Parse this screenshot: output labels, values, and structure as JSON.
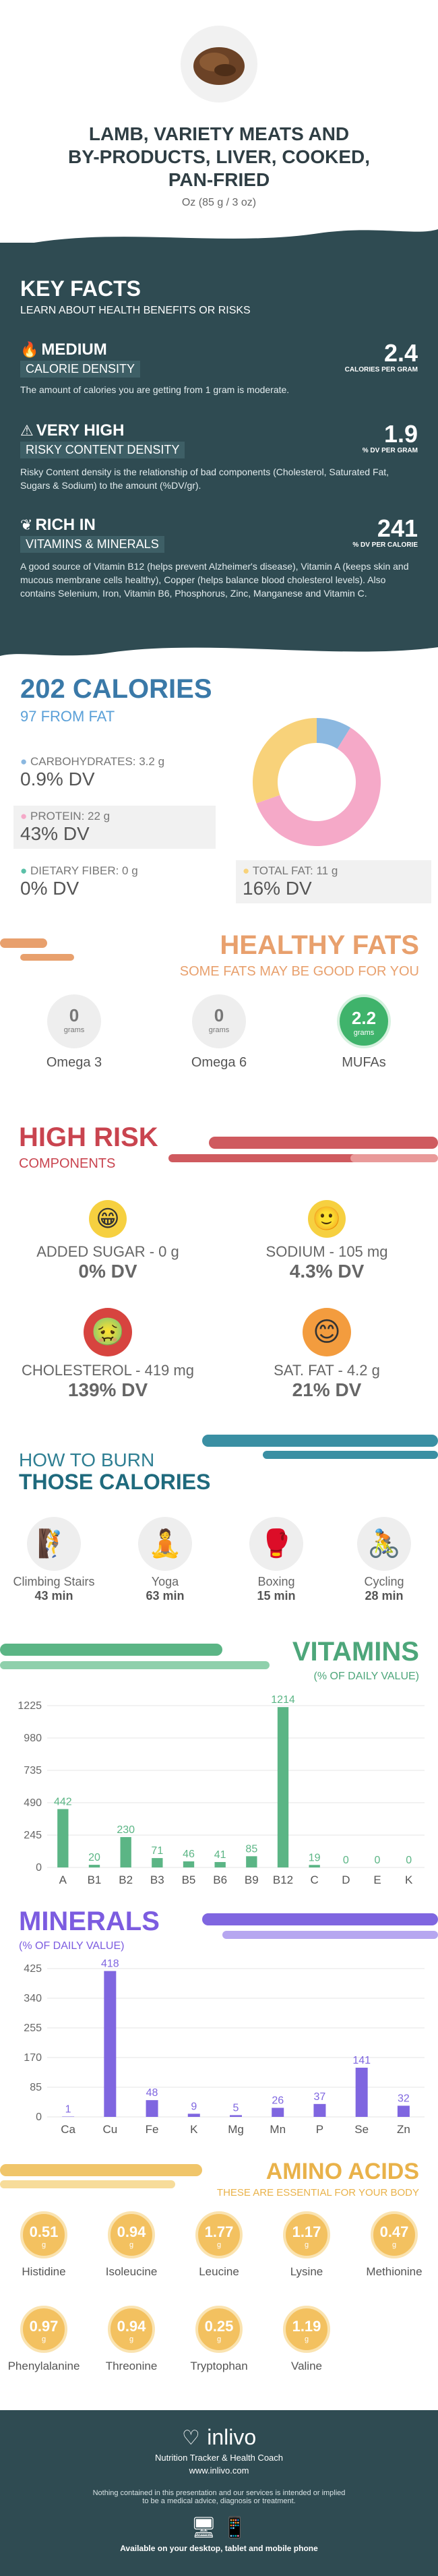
{
  "header": {
    "title_line1": "LAMB, VARIETY MEATS AND",
    "title_line2": "BY-PRODUCTS, LIVER, COOKED,",
    "title_line3": "PAN-FRIED",
    "serving": "Oz (85 g / 3 oz)"
  },
  "key_facts": {
    "title": "KEY FACTS",
    "subtitle": "LEARN ABOUT HEALTH BENEFITS OR RISKS",
    "items": [
      {
        "level": "MEDIUM",
        "label": "CALORIE DENSITY",
        "value": "2.4",
        "unit": "CALORIES PER GRAM",
        "desc": "The amount of calories you are getting from 1 gram is moderate."
      },
      {
        "level": "VERY HIGH",
        "label": "RISKY CONTENT DENSITY",
        "value": "1.9",
        "unit": "% DV PER GRAM",
        "desc": "Risky Content density is the relationship of bad components (Cholesterol, Saturated Fat, Sugars & Sodium) to the amount (%DV/gr)."
      },
      {
        "level": "RICH  IN",
        "label": "VITAMINS & MINERALS",
        "value": "241",
        "unit": "% DV PER CALORIE",
        "desc": "A good source of Vitamin B12 (helps prevent Alzheimer's disease), Vitamin A (keeps skin and mucous membrane cells healthy), Copper (helps balance blood cholesterol levels). Also contains Selenium, Iron, Vitamin B6, Phosphorus, Zinc, Manganese and Vitamin C."
      }
    ]
  },
  "calories": {
    "title": "202 CALORIES",
    "from_fat": "97 FROM FAT",
    "carbs_label": "CARBOHYDRATES: 3.2 g",
    "carbs_dv": "0.9% DV",
    "protein_label": "PROTEIN: 22 g",
    "protein_dv": "43% DV",
    "fiber_label": "DIETARY FIBER: 0 g",
    "fiber_dv": "0% DV",
    "fat_label": "TOTAL FAT: 11 g",
    "fat_dv": "16% DV",
    "colors": {
      "carbs": "#8bb8e0",
      "protein": "#f5a9c8",
      "fiber": "#5bc0a8",
      "fat": "#f8d27a"
    }
  },
  "healthy_fats": {
    "title": "HEALTHY FATS",
    "subtitle": "SOME FATS MAY BE GOOD FOR YOU",
    "items": [
      {
        "value": "0",
        "unit": "grams",
        "name": "Omega 3"
      },
      {
        "value": "0",
        "unit": "grams",
        "name": "Omega 6"
      },
      {
        "value": "2.2",
        "unit": "grams",
        "name": "MUFAs"
      }
    ]
  },
  "high_risk": {
    "title": "HIGH RISK",
    "subtitle": "COMPONENTS",
    "items": [
      {
        "label": "ADDED SUGAR - 0 g",
        "dv": "0% DV"
      },
      {
        "label": "SODIUM - 105 mg",
        "dv": "4.3% DV"
      },
      {
        "label": "CHOLESTEROL - 419 mg",
        "dv": "139% DV"
      },
      {
        "label": "SAT. FAT - 4.2 g",
        "dv": "21% DV"
      }
    ]
  },
  "burn": {
    "title1": "HOW TO BURN",
    "title2": "THOSE CALORIES",
    "items": [
      {
        "name": "Climbing Stairs",
        "time": "43 min"
      },
      {
        "name": "Yoga",
        "time": "63 min"
      },
      {
        "name": "Boxing",
        "time": "15 min"
      },
      {
        "name": "Cycling",
        "time": "28 min"
      }
    ]
  },
  "vitamins": {
    "title": "VITAMINS",
    "subtitle": "(% OF DAILY VALUE)",
    "color": "#5bb585"
  },
  "minerals": {
    "title": "MINERALS",
    "subtitle": "(% OF DAILY VALUE)",
    "color": "#7f66e0"
  },
  "chart_data": [
    {
      "type": "bar",
      "title": "VITAMINS",
      "subtitle": "(% OF DAILY VALUE)",
      "categories": [
        "A",
        "B1",
        "B2",
        "B3",
        "B5",
        "B6",
        "B9",
        "B12",
        "C",
        "D",
        "E",
        "K"
      ],
      "values": [
        442,
        20,
        230,
        71,
        46,
        41,
        85,
        1214,
        19,
        0,
        0,
        0
      ],
      "yticks": [
        0,
        245,
        490,
        735,
        980,
        1225
      ],
      "ylim": [
        0,
        1225
      ]
    },
    {
      "type": "bar",
      "title": "MINERALS",
      "subtitle": "(% OF DAILY VALUE)",
      "categories": [
        "Ca",
        "Cu",
        "Fe",
        "K",
        "Mg",
        "Mn",
        "P",
        "Se",
        "Zn"
      ],
      "values": [
        1,
        418,
        48,
        9,
        5,
        26,
        37,
        141,
        32
      ],
      "yticks": [
        0,
        85,
        170,
        255,
        340,
        425
      ],
      "ylim": [
        0,
        425
      ]
    },
    {
      "type": "pie",
      "categories": [
        "Carbohydrates",
        "Protein",
        "Total Fat"
      ],
      "values": [
        3.2,
        22,
        11
      ]
    }
  ],
  "amino": {
    "title": "AMINO ACIDS",
    "subtitle": "THESE ARE ESSENTIAL FOR YOUR BODY",
    "items": [
      {
        "value": "0.51",
        "unit": "g",
        "name": "Histidine"
      },
      {
        "value": "0.94",
        "unit": "g",
        "name": "Isoleucine"
      },
      {
        "value": "1.77",
        "unit": "g",
        "name": "Leucine"
      },
      {
        "value": "1.17",
        "unit": "g",
        "name": "Lysine"
      },
      {
        "value": "0.47",
        "unit": "g",
        "name": "Methionine"
      },
      {
        "value": "0.97",
        "unit": "g",
        "name": "Phenylalanine"
      },
      {
        "value": "0.94",
        "unit": "g",
        "name": "Threonine"
      },
      {
        "value": "0.25",
        "unit": "g",
        "name": "Tryptophan"
      },
      {
        "value": "1.19",
        "unit": "g",
        "name": "Valine"
      }
    ]
  },
  "footer": {
    "brand": "inlivo",
    "tagline": "Nutrition Tracker & Health Coach",
    "url": "www.inlivo.com",
    "disclaimer1": "Nothing contained in this presentation and our services is intended or implied",
    "disclaimer2": "to be a medical advice, diagnosis or treatment.",
    "available": "Available on your desktop, tablet and mobile phone"
  }
}
